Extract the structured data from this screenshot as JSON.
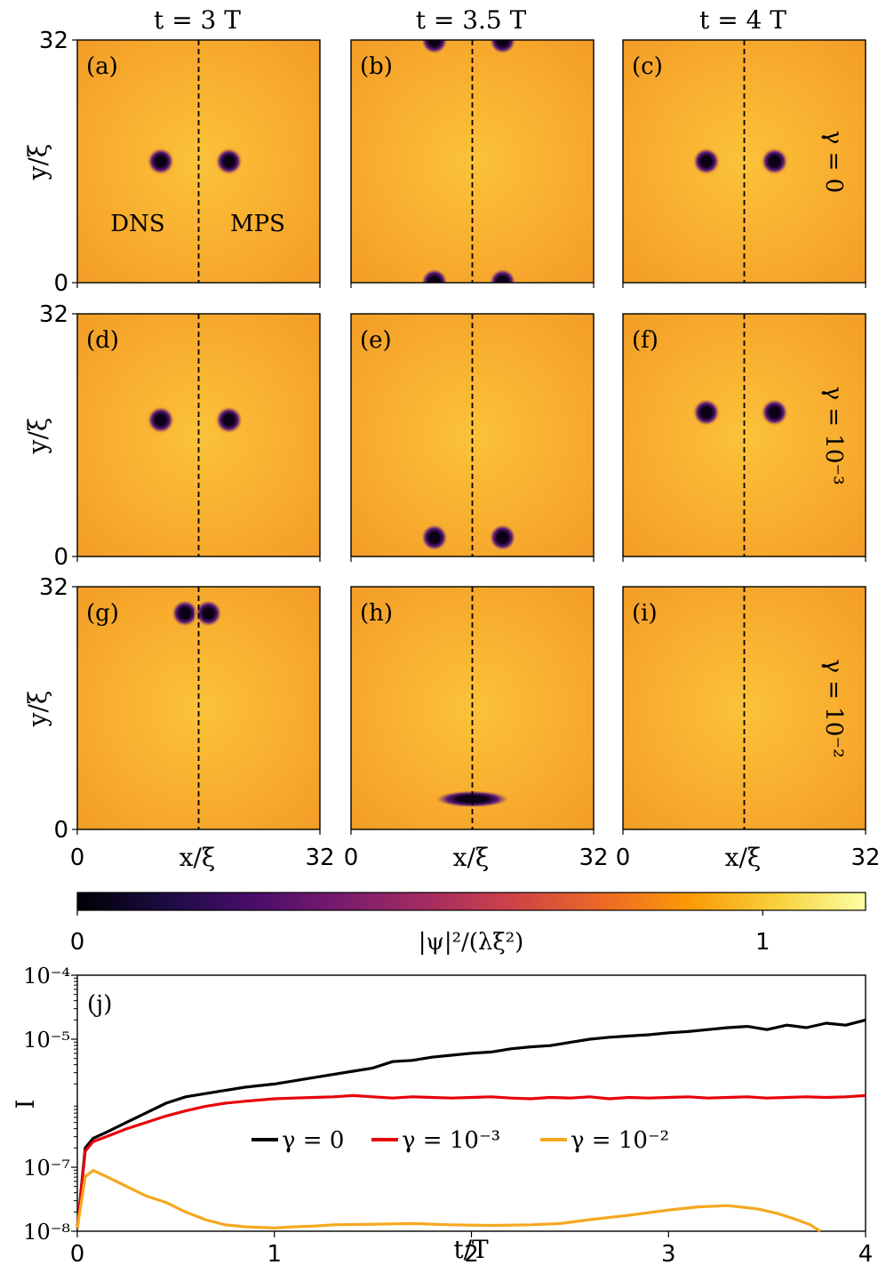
{
  "colors": {
    "field": "#f8ac2e",
    "field_light": "#fbc23a",
    "field_dark": "#f19a26",
    "vortex_core": "#0b0015",
    "vortex_ring": "#5a1a7a",
    "dashed_line": "#000000",
    "dashed_line_light": "#ffffff",
    "series_gamma0": "#000000",
    "series_gamma1e3": "#e8000b",
    "series_gamma1e2": "#f5a81e",
    "cmap": [
      "#000004",
      "#1b0c41",
      "#4a0c6b",
      "#781c6d",
      "#a52c60",
      "#cf4446",
      "#ed6925",
      "#fb9b06",
      "#f7d13d",
      "#fcffa4"
    ]
  },
  "column_titles": [
    "t = 3 T",
    "t = 3.5 T",
    "t = 4 T"
  ],
  "row_labels": [
    "γ = 0",
    "γ = 10⁻³",
    "γ = 10⁻²"
  ],
  "panel_axes": {
    "xlabel": "x/ξ",
    "ylabel": "y/ξ",
    "xtick_min": "0",
    "xtick_max": "32",
    "ytick_min": "0",
    "ytick_max": "32",
    "side_left": "DNS",
    "side_right": "MPS",
    "range": [
      0,
      32
    ]
  },
  "panels": [
    {
      "label": "(a)",
      "row": 0,
      "col": 0,
      "vortices": [
        [
          11,
          16
        ],
        [
          20,
          16
        ]
      ],
      "dashed": "dark"
    },
    {
      "label": "(b)",
      "row": 0,
      "col": 1,
      "vortices": [
        [
          11,
          31.9
        ],
        [
          20,
          31.9
        ],
        [
          11,
          0.1
        ],
        [
          20,
          0.1
        ]
      ],
      "dashed": "dark"
    },
    {
      "label": "(c)",
      "row": 0,
      "col": 2,
      "vortices": [
        [
          11,
          16
        ],
        [
          20,
          16
        ]
      ],
      "dashed": "dark"
    },
    {
      "label": "(d)",
      "row": 1,
      "col": 0,
      "vortices": [
        [
          11,
          18
        ],
        [
          20,
          18
        ]
      ],
      "dashed": "dark"
    },
    {
      "label": "(e)",
      "row": 1,
      "col": 1,
      "vortices": [
        [
          11,
          2.5
        ],
        [
          20,
          2.5
        ]
      ],
      "dashed": "dark"
    },
    {
      "label": "(f)",
      "row": 1,
      "col": 2,
      "vortices": [
        [
          11,
          19
        ],
        [
          20,
          19
        ]
      ],
      "dashed": "dark"
    },
    {
      "label": "(g)",
      "row": 2,
      "col": 0,
      "vortices": [
        [
          14.2,
          28.5
        ],
        [
          17.3,
          28.5
        ]
      ],
      "dashed": "dark"
    },
    {
      "label": "(h)",
      "row": 2,
      "col": 1,
      "vortices": [
        [
          16,
          4
        ]
      ],
      "dashed": "dark"
    },
    {
      "label": "(i)",
      "row": 2,
      "col": 2,
      "vortices": [],
      "dashed": "dark"
    }
  ],
  "colorbar": {
    "label": "|ψ|²/(λξ²)",
    "ticks": [
      "0",
      "1"
    ],
    "tick_values": [
      0,
      1
    ],
    "range": [
      0,
      1.15
    ]
  },
  "chart_data": {
    "type": "line",
    "panel_label": "(j)",
    "xlabel": "t/T",
    "ylabel": "I",
    "xlim": [
      0,
      4
    ],
    "ylim_log10": [
      -8,
      -4
    ],
    "yscale": "log",
    "xticks": [
      "0",
      "1",
      "2",
      "3",
      "4"
    ],
    "xtick_values": [
      0,
      1,
      2,
      3,
      4
    ],
    "yticks": [
      "10⁻⁸",
      "10⁻⁷",
      "10⁻⁵",
      "10⁻⁴"
    ],
    "ytick_exponents": [
      -8,
      -7,
      -5,
      -4
    ],
    "legend_placement": "center",
    "series": [
      {
        "name": "γ = 0",
        "color": "#000000",
        "points": [
          [
            0,
            -7.95
          ],
          [
            0.04,
            -6.7
          ],
          [
            0.08,
            -6.55
          ],
          [
            0.15,
            -6.45
          ],
          [
            0.25,
            -6.3
          ],
          [
            0.35,
            -6.15
          ],
          [
            0.45,
            -6.0
          ],
          [
            0.55,
            -5.9
          ],
          [
            0.65,
            -5.85
          ],
          [
            0.75,
            -5.8
          ],
          [
            0.85,
            -5.75
          ],
          [
            1.0,
            -5.7
          ],
          [
            1.1,
            -5.65
          ],
          [
            1.2,
            -5.6
          ],
          [
            1.3,
            -5.55
          ],
          [
            1.4,
            -5.5
          ],
          [
            1.5,
            -5.45
          ],
          [
            1.6,
            -5.35
          ],
          [
            1.7,
            -5.33
          ],
          [
            1.8,
            -5.28
          ],
          [
            1.9,
            -5.25
          ],
          [
            2.0,
            -5.22
          ],
          [
            2.1,
            -5.2
          ],
          [
            2.2,
            -5.15
          ],
          [
            2.3,
            -5.12
          ],
          [
            2.4,
            -5.1
          ],
          [
            2.5,
            -5.05
          ],
          [
            2.6,
            -5.0
          ],
          [
            2.7,
            -4.97
          ],
          [
            2.8,
            -4.95
          ],
          [
            2.9,
            -4.93
          ],
          [
            3.0,
            -4.9
          ],
          [
            3.1,
            -4.88
          ],
          [
            3.2,
            -4.85
          ],
          [
            3.3,
            -4.82
          ],
          [
            3.4,
            -4.8
          ],
          [
            3.5,
            -4.85
          ],
          [
            3.6,
            -4.78
          ],
          [
            3.7,
            -4.82
          ],
          [
            3.8,
            -4.75
          ],
          [
            3.9,
            -4.78
          ],
          [
            4.0,
            -4.7
          ]
        ]
      },
      {
        "name": "γ = 10⁻³",
        "color": "#e8000b",
        "points": [
          [
            0,
            -7.95
          ],
          [
            0.04,
            -6.75
          ],
          [
            0.08,
            -6.6
          ],
          [
            0.15,
            -6.52
          ],
          [
            0.25,
            -6.4
          ],
          [
            0.35,
            -6.3
          ],
          [
            0.45,
            -6.2
          ],
          [
            0.55,
            -6.12
          ],
          [
            0.65,
            -6.05
          ],
          [
            0.75,
            -6.0
          ],
          [
            0.85,
            -5.97
          ],
          [
            1.0,
            -5.93
          ],
          [
            1.1,
            -5.92
          ],
          [
            1.2,
            -5.91
          ],
          [
            1.3,
            -5.9
          ],
          [
            1.4,
            -5.88
          ],
          [
            1.5,
            -5.9
          ],
          [
            1.6,
            -5.92
          ],
          [
            1.7,
            -5.9
          ],
          [
            1.8,
            -5.91
          ],
          [
            1.9,
            -5.92
          ],
          [
            2.0,
            -5.91
          ],
          [
            2.1,
            -5.9
          ],
          [
            2.2,
            -5.92
          ],
          [
            2.3,
            -5.93
          ],
          [
            2.4,
            -5.91
          ],
          [
            2.5,
            -5.92
          ],
          [
            2.6,
            -5.9
          ],
          [
            2.7,
            -5.93
          ],
          [
            2.8,
            -5.91
          ],
          [
            2.9,
            -5.92
          ],
          [
            3.0,
            -5.91
          ],
          [
            3.1,
            -5.9
          ],
          [
            3.2,
            -5.92
          ],
          [
            3.3,
            -5.91
          ],
          [
            3.4,
            -5.9
          ],
          [
            3.5,
            -5.92
          ],
          [
            3.6,
            -5.91
          ],
          [
            3.7,
            -5.9
          ],
          [
            3.8,
            -5.91
          ],
          [
            3.9,
            -5.9
          ],
          [
            4.0,
            -5.88
          ]
        ]
      },
      {
        "name": "γ = 10⁻²",
        "color": "#f5a81e",
        "points": [
          [
            0,
            -7.95
          ],
          [
            0.04,
            -7.15
          ],
          [
            0.08,
            -7.05
          ],
          [
            0.15,
            -7.15
          ],
          [
            0.25,
            -7.3
          ],
          [
            0.35,
            -7.45
          ],
          [
            0.45,
            -7.55
          ],
          [
            0.55,
            -7.7
          ],
          [
            0.65,
            -7.82
          ],
          [
            0.75,
            -7.9
          ],
          [
            0.85,
            -7.93
          ],
          [
            1.0,
            -7.95
          ],
          [
            1.1,
            -7.93
          ],
          [
            1.2,
            -7.92
          ],
          [
            1.3,
            -7.9
          ],
          [
            1.5,
            -7.89
          ],
          [
            1.7,
            -7.88
          ],
          [
            1.9,
            -7.9
          ],
          [
            2.1,
            -7.91
          ],
          [
            2.3,
            -7.9
          ],
          [
            2.45,
            -7.88
          ],
          [
            2.6,
            -7.82
          ],
          [
            2.8,
            -7.75
          ],
          [
            3.0,
            -7.67
          ],
          [
            3.15,
            -7.62
          ],
          [
            3.3,
            -7.6
          ],
          [
            3.45,
            -7.65
          ],
          [
            3.55,
            -7.72
          ],
          [
            3.65,
            -7.82
          ],
          [
            3.72,
            -7.9
          ],
          [
            3.77,
            -8.0
          ]
        ]
      }
    ]
  }
}
